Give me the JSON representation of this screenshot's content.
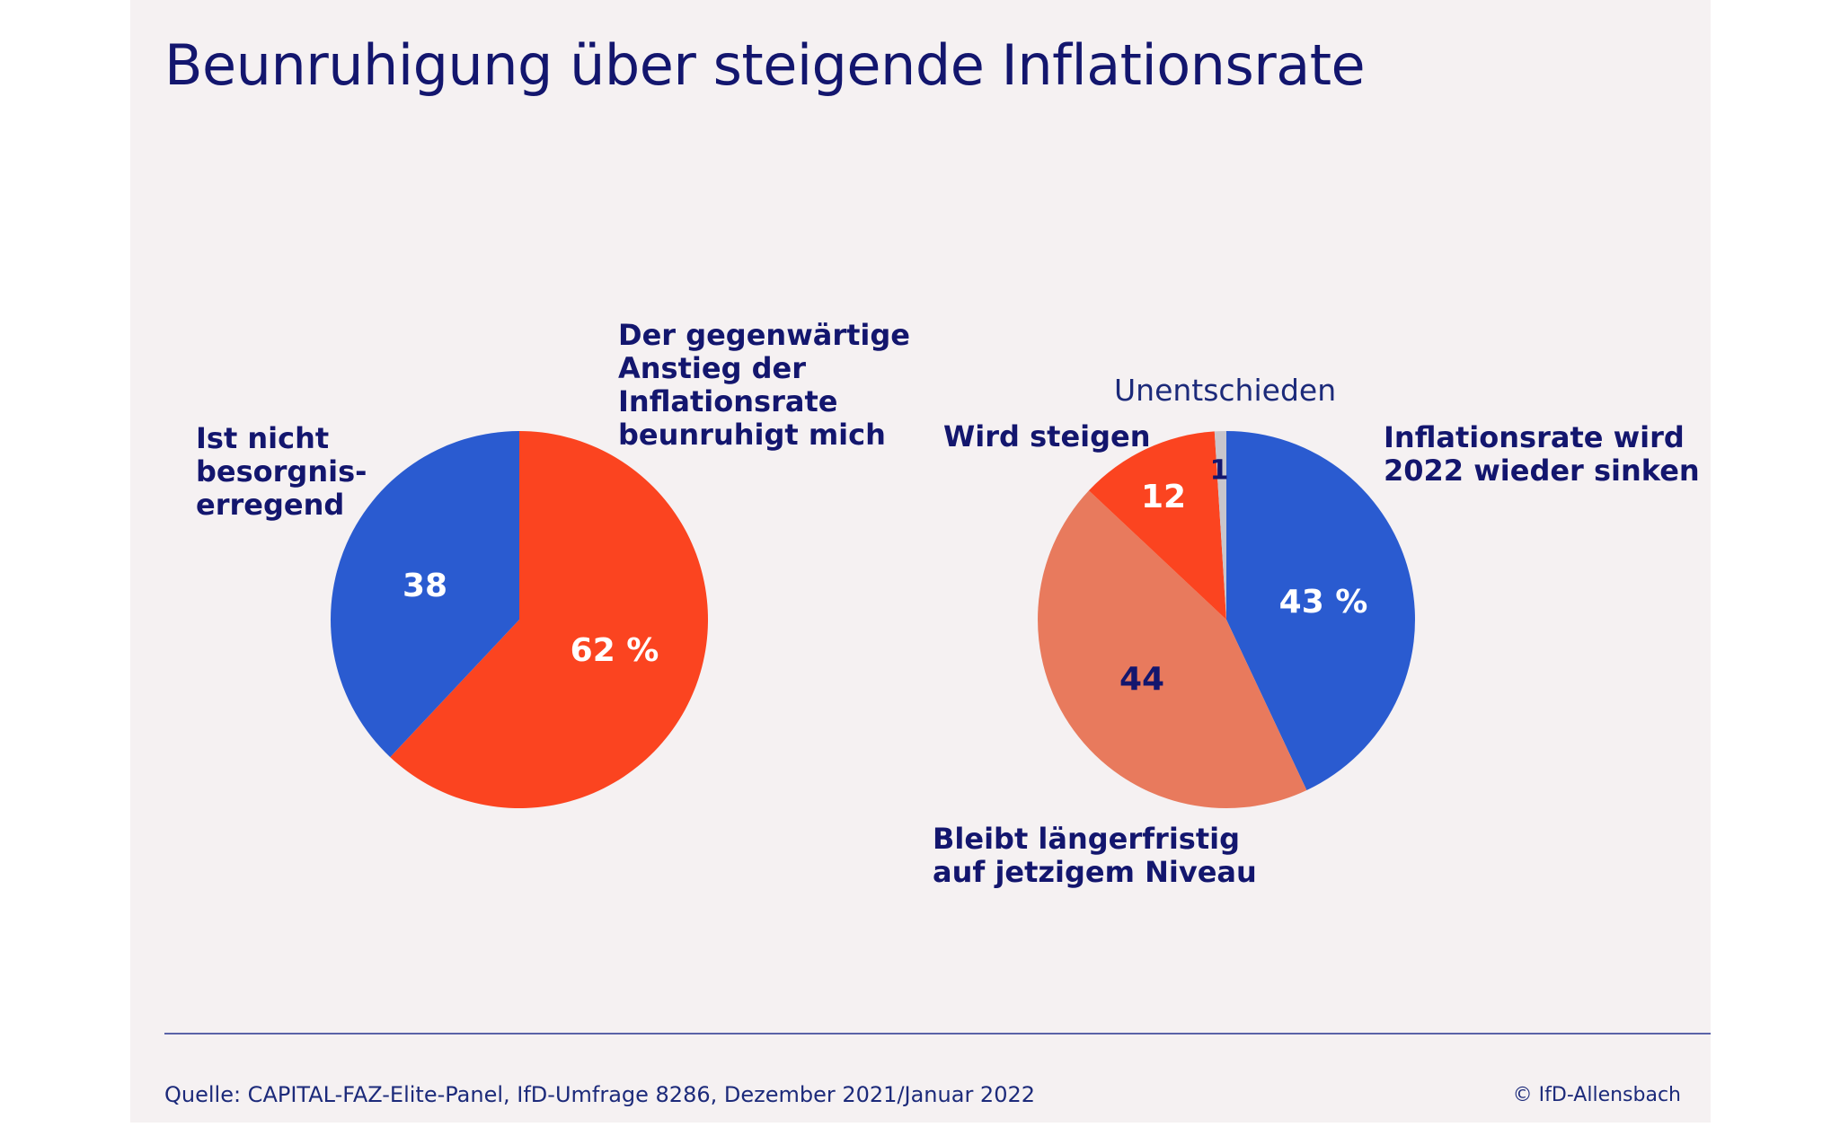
{
  "title": "Beunruhigung über steigende Inflationsrate",
  "colors": {
    "background": "#f5f1f2",
    "blue": "#2a5bd0",
    "red": "#fb4420",
    "salmon": "#e87a5d",
    "grey": "#c8c6cc",
    "navy": "#13166e"
  },
  "chart_data": [
    {
      "type": "pie",
      "unit": "%",
      "slices": [
        {
          "label": "Der gegenwärtige\nAnstieg der\nInflationsrate\nbeunruhigt mich",
          "value": 62,
          "value_label": "62 %",
          "color": "#fb4420",
          "value_color": "#ffffff"
        },
        {
          "label": "Ist nicht\nbesorgnis-\nerregend",
          "value": 38,
          "value_label": "38",
          "color": "#2a5bd0",
          "value_color": "#ffffff"
        }
      ]
    },
    {
      "type": "pie",
      "unit": "%",
      "slices": [
        {
          "label": "Inflationsrate wird\n2022 wieder sinken",
          "value": 43,
          "value_label": "43 %",
          "color": "#2a5bd0",
          "value_color": "#ffffff"
        },
        {
          "label": "Bleibt längerfristig\nauf jetzigem Niveau",
          "value": 44,
          "value_label": "44",
          "color": "#e87a5d",
          "value_color": "#13166e"
        },
        {
          "label": "Wird steigen",
          "value": 12,
          "value_label": "12",
          "color": "#fb4420",
          "value_color": "#ffffff"
        },
        {
          "label": "Unentschieden",
          "value": 1,
          "value_label": "1",
          "color": "#c8c6cc",
          "value_color": "#13166e"
        }
      ]
    }
  ],
  "footer": {
    "source": "Quelle: CAPITAL-FAZ-Elite-Panel, IfD-Umfrage 8286, Dezember 2021/Januar 2022",
    "copyright": "© IfD-Allensbach"
  }
}
